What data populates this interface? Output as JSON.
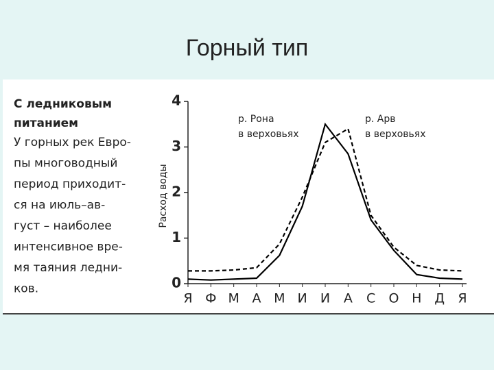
{
  "slide_title": "Горный тип",
  "text_block": {
    "heading": [
      "С ледниковым",
      "питанием"
    ],
    "lines": [
      "У горных рек Евро-",
      "пы многоводный",
      "период приходит-",
      "ся на июль–ав-",
      "густ – наиболее",
      "интенсивное вре-",
      "мя таяния ледни-",
      "ков."
    ]
  },
  "chart_data": {
    "type": "line",
    "y_label": "Расход воды",
    "categories": [
      "Я",
      "Ф",
      "М",
      "А",
      "М",
      "И",
      "И",
      "А",
      "С",
      "О",
      "Н",
      "Д",
      "Я"
    ],
    "series": [
      {
        "name": "р. Рона в верховьях",
        "color": "#000000",
        "dash": false,
        "values": [
          0.1,
          0.08,
          0.1,
          0.12,
          0.62,
          1.7,
          3.5,
          2.85,
          1.4,
          0.73,
          0.2,
          0.12,
          0.1
        ]
      },
      {
        "name": "р. Арв в верховьях",
        "color": "#000000",
        "dash": true,
        "values": [
          0.28,
          0.28,
          0.3,
          0.35,
          0.87,
          1.9,
          3.1,
          3.4,
          1.5,
          0.8,
          0.4,
          0.3,
          0.28
        ]
      }
    ],
    "annotations": [
      [
        "р. Рона",
        "в верховьях"
      ],
      [
        "р. Арв",
        "в верховьях"
      ]
    ],
    "ylim": [
      0,
      4
    ],
    "yticks": [
      0,
      1,
      2,
      3,
      4
    ],
    "grid": false
  }
}
